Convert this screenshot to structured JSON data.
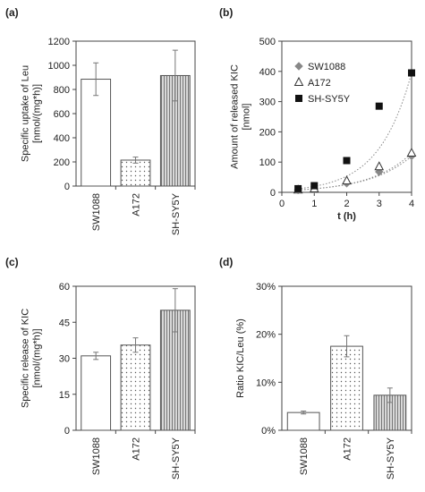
{
  "chart_data": [
    {
      "panel": "(a)",
      "type": "bar",
      "ylabel": [
        "Specific uptake of Leu",
        "[nmol/(mg*h)]"
      ],
      "ylim": [
        0,
        1200
      ],
      "yticks": [
        "0",
        "200",
        "400",
        "600",
        "800",
        "1000",
        "1200"
      ],
      "categories": [
        "SW1088",
        "A172",
        "SH-SY5Y"
      ],
      "values": [
        885,
        215,
        915
      ],
      "errors": [
        135,
        25,
        210
      ],
      "fills": [
        "blank",
        "dots",
        "vlines"
      ]
    },
    {
      "panel": "(b)",
      "type": "scatter",
      "ylabel": [
        "Amount of released KIC",
        "[nmol]"
      ],
      "xlabel": "t (h)",
      "xlim": [
        0,
        4
      ],
      "ylim": [
        0,
        500
      ],
      "xticks": [
        "0",
        "1",
        "2",
        "3",
        "4"
      ],
      "yticks": [
        "0",
        "100",
        "200",
        "300",
        "400",
        "500"
      ],
      "series": [
        {
          "name": "SW1088",
          "marker": "diamond",
          "x": [
            0.5,
            1,
            2,
            3,
            4
          ],
          "y": [
            8,
            10,
            30,
            68,
            120
          ]
        },
        {
          "name": "A172",
          "marker": "triangle",
          "x": [
            0.5,
            1,
            2,
            3,
            4
          ],
          "y": [
            8,
            12,
            38,
            85,
            130
          ]
        },
        {
          "name": "SH-SY5Y",
          "marker": "square",
          "x": [
            0.5,
            1,
            2,
            3,
            4
          ],
          "y": [
            12,
            22,
            105,
            285,
            395
          ]
        }
      ],
      "trendline": "dotted exponential fit per series"
    },
    {
      "panel": "(c)",
      "type": "bar",
      "ylabel": [
        "Specific release of KIC",
        "[nmol/(mg*h)]"
      ],
      "ylim": [
        0,
        60
      ],
      "yticks": [
        "0",
        "15",
        "30",
        "45",
        "60"
      ],
      "categories": [
        "SW1088",
        "A172",
        "SH-SY5Y"
      ],
      "values": [
        31,
        35.5,
        50
      ],
      "errors": [
        1.5,
        3,
        9
      ],
      "fills": [
        "blank",
        "dots",
        "vlines"
      ]
    },
    {
      "panel": "(d)",
      "type": "bar",
      "ylabel": [
        "Ratio KIC/Leu (%)"
      ],
      "ylim": [
        0,
        30
      ],
      "yticks": [
        "0%",
        "10%",
        "20%",
        "30%"
      ],
      "categories": [
        "SW1088",
        "A172",
        "SH-SY5Y"
      ],
      "values": [
        3.7,
        17.5,
        7.3
      ],
      "errors": [
        0.3,
        2.2,
        1.5
      ],
      "fills": [
        "blank",
        "dots",
        "vlines"
      ]
    }
  ]
}
